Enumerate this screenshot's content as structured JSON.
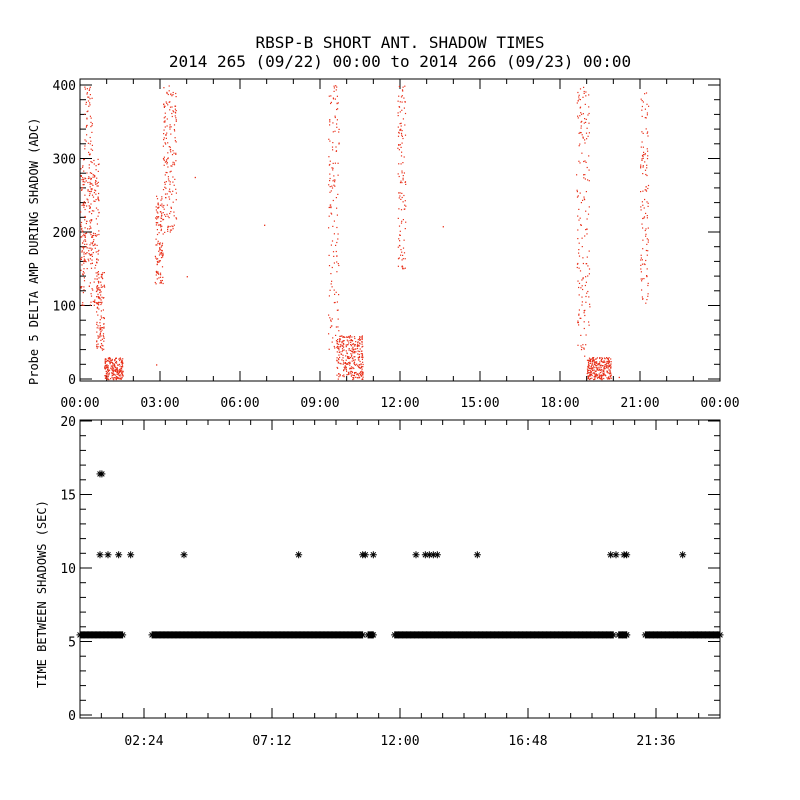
{
  "title": {
    "line1": "RBSP-B SHORT ANT. SHADOW TIMES",
    "line2": "2014 265 (09/22) 00:00 to 2014 266 (09/23) 00:00"
  },
  "colors": {
    "amp_points": "#e8301a",
    "shadow_points": "#000000",
    "axes": "#000000"
  },
  "chart_data": [
    {
      "type": "scatter",
      "ylabel": "Probe 5 DELTA AMP DURING SHADOW (ADC)",
      "xlim_hours": [
        0,
        24
      ],
      "ylim": [
        0,
        400
      ],
      "xticks": [
        "00:00",
        "03:00",
        "06:00",
        "09:00",
        "12:00",
        "15:00",
        "18:00",
        "21:00",
        "00:00"
      ],
      "yticks": [
        "0",
        "100",
        "200",
        "300",
        "400"
      ],
      "marker": "dot",
      "bands_note": "points listed as clusters of (hour, amplitude) samples",
      "clusters": [
        {
          "x_range": [
            0.0,
            0.18
          ],
          "y_range": [
            100,
            300
          ]
        },
        {
          "x_range": [
            0.15,
            0.45
          ],
          "y_range": [
            150,
            400
          ]
        },
        {
          "x_range": [
            0.3,
            0.7
          ],
          "y_range": [
            100,
            300
          ]
        },
        {
          "x_range": [
            0.6,
            0.9
          ],
          "y_range": [
            40,
            150
          ]
        },
        {
          "x_range": [
            0.9,
            1.6
          ],
          "y_range": [
            0,
            30
          ]
        },
        {
          "x_range": [
            2.8,
            3.1
          ],
          "y_range": [
            130,
            250
          ]
        },
        {
          "x_range": [
            3.1,
            3.6
          ],
          "y_range": [
            200,
            400
          ]
        },
        {
          "x_range": [
            9.3,
            9.7
          ],
          "y_range": [
            40,
            400
          ]
        },
        {
          "x_range": [
            9.6,
            10.6
          ],
          "y_range": [
            0,
            60
          ]
        },
        {
          "x_range": [
            11.9,
            12.2
          ],
          "y_range": [
            150,
            400
          ]
        },
        {
          "x_range": [
            18.6,
            19.1
          ],
          "y_range": [
            30,
            400
          ]
        },
        {
          "x_range": [
            19.0,
            19.9
          ],
          "y_range": [
            0,
            30
          ]
        },
        {
          "x_range": [
            21.0,
            21.3
          ],
          "y_range": [
            100,
            390
          ]
        }
      ],
      "isolated_points": [
        [
          2.85,
          20
        ],
        [
          4.0,
          140
        ],
        [
          4.3,
          275
        ],
        [
          6.9,
          210
        ],
        [
          13.6,
          208
        ],
        [
          20.2,
          3
        ]
      ]
    },
    {
      "type": "scatter",
      "ylabel": "TIME BETWEEN SHADOWS (SEC)",
      "xlim_hours": [
        0,
        24
      ],
      "ylim": [
        0,
        20
      ],
      "xtick_hours": [
        2.4,
        7.2,
        12.0,
        16.8,
        21.6
      ],
      "xticks": [
        "02:24",
        "07:12",
        "12:00",
        "16:48",
        "21:36"
      ],
      "yticks": [
        "0",
        "5",
        "10",
        "15",
        "20"
      ],
      "marker": "asterisk",
      "base_level": 5.45,
      "base_segments_hours": [
        [
          0.0,
          1.6
        ],
        [
          2.7,
          10.6
        ],
        [
          10.8,
          11.0
        ],
        [
          11.8,
          20.0
        ],
        [
          20.2,
          20.5
        ],
        [
          21.2,
          24.0
        ]
      ],
      "points": [
        [
          0.75,
          16.4
        ],
        [
          0.82,
          16.4
        ],
        [
          0.75,
          10.9
        ],
        [
          1.05,
          10.9
        ],
        [
          1.45,
          10.9
        ],
        [
          1.9,
          10.9
        ],
        [
          3.9,
          10.9
        ],
        [
          8.2,
          10.9
        ],
        [
          10.6,
          10.9
        ],
        [
          10.7,
          10.9
        ],
        [
          11.0,
          10.9
        ],
        [
          12.6,
          10.9
        ],
        [
          12.95,
          10.9
        ],
        [
          13.1,
          10.9
        ],
        [
          13.25,
          10.9
        ],
        [
          13.4,
          10.9
        ],
        [
          14.9,
          10.9
        ],
        [
          19.9,
          10.9
        ],
        [
          20.1,
          10.9
        ],
        [
          20.4,
          10.9
        ],
        [
          20.5,
          10.9
        ],
        [
          22.6,
          10.9
        ]
      ]
    }
  ]
}
